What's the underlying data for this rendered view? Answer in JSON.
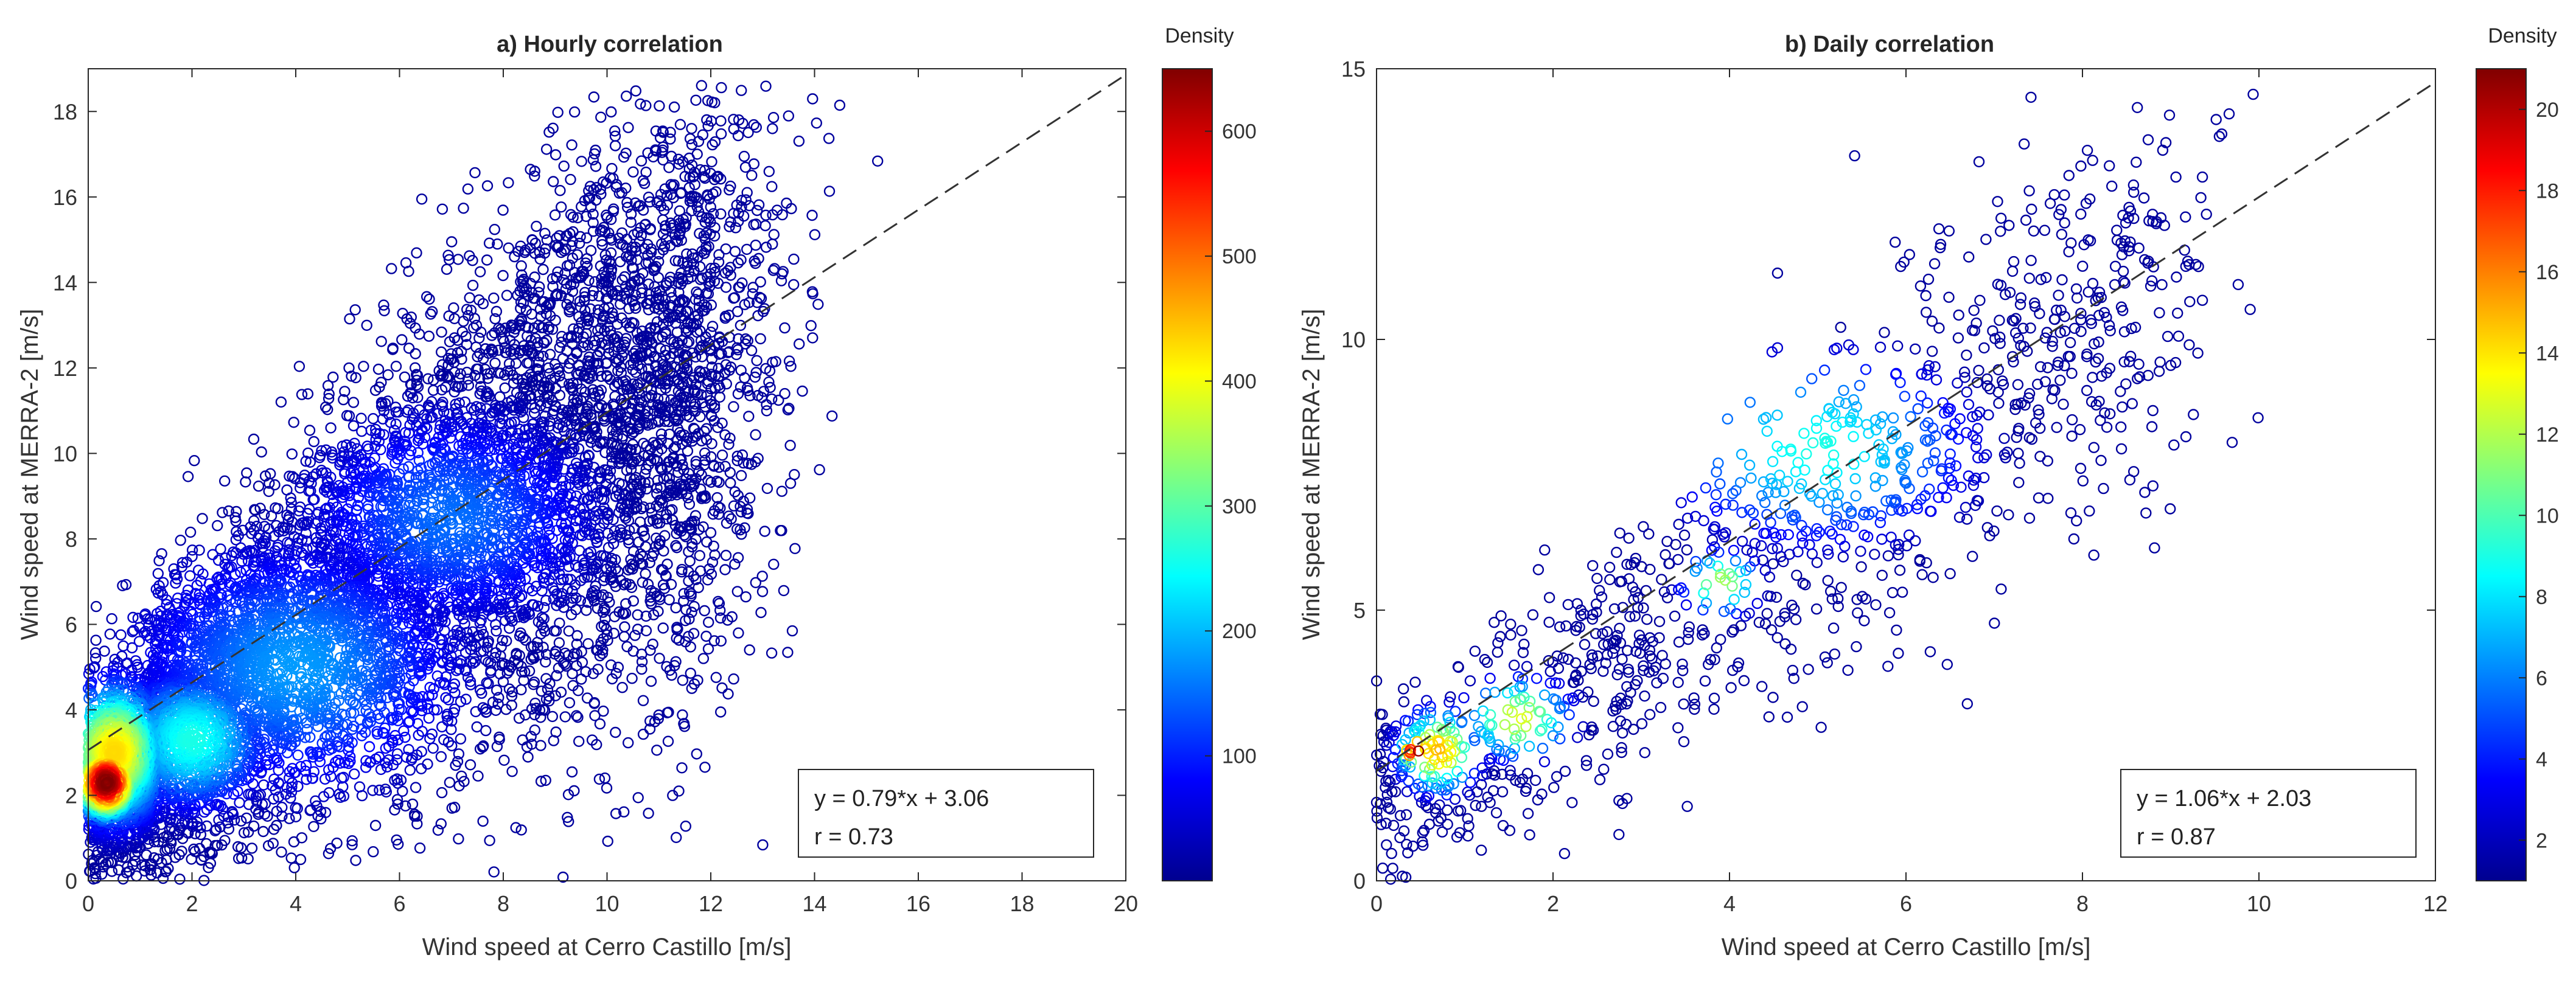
{
  "chart_data": [
    {
      "type": "scatter",
      "title": "a) Hourly correlation",
      "xlabel": "Wind speed at Cerro Castillo [m/s]",
      "ylabel": "Wind speed at MERRA-2 [m/s]",
      "xlim": [
        0,
        20
      ],
      "ylim": [
        0,
        19
      ],
      "xticks": [
        "0",
        "2",
        "4",
        "6",
        "8",
        "10",
        "12",
        "14",
        "16",
        "18",
        "20"
      ],
      "yticks": [
        "0",
        "2",
        "4",
        "6",
        "8",
        "10",
        "12",
        "14",
        "16",
        "18"
      ],
      "colorbar": {
        "title": "Density",
        "range": [
          0,
          650
        ],
        "ticks": [
          "100",
          "200",
          "300",
          "400",
          "500",
          "600"
        ]
      },
      "fit": {
        "slope": 0.79,
        "intercept": 3.06
      },
      "annotation": {
        "equation": "y = 0.79*x + 3.06",
        "r": "r = 0.73"
      },
      "density_hotspots": [
        {
          "x": 0.35,
          "y": 2.3,
          "density": 650,
          "spread_x": 0.35,
          "spread_y": 0.5
        },
        {
          "x": 0.5,
          "y": 3.0,
          "density": 430,
          "spread_x": 0.6,
          "spread_y": 1.0
        },
        {
          "x": 2.0,
          "y": 3.3,
          "density": 260,
          "spread_x": 0.9,
          "spread_y": 1.0
        },
        {
          "x": 4.0,
          "y": 5.0,
          "density": 180,
          "spread_x": 2.0,
          "spread_y": 1.8
        },
        {
          "x": 7.0,
          "y": 8.5,
          "density": 150,
          "spread_x": 1.8,
          "spread_y": 1.6
        }
      ],
      "n_points": 9000
    },
    {
      "type": "scatter",
      "title": "b) Daily correlation",
      "xlabel": "Wind speed at Cerro Castillo [m/s]",
      "ylabel": "Wind speed at MERRA-2 [m/s]",
      "xlim": [
        0,
        12
      ],
      "ylim": [
        0,
        15
      ],
      "xticks": [
        "0",
        "2",
        "4",
        "6",
        "8",
        "10",
        "12"
      ],
      "yticks": [
        "0",
        "5",
        "10",
        "15"
      ],
      "colorbar": {
        "title": "Density",
        "range": [
          1,
          21
        ],
        "ticks": [
          "2",
          "4",
          "6",
          "8",
          "10",
          "12",
          "14",
          "16",
          "18",
          "20"
        ]
      },
      "fit": {
        "slope": 1.06,
        "intercept": 2.03
      },
      "annotation": {
        "equation": "y = 1.06*x + 2.03",
        "r": "r = 0.87"
      },
      "density_hotspots": [
        {
          "x": 0.45,
          "y": 2.4,
          "density": 21,
          "spread_x": 0.12,
          "spread_y": 0.2
        },
        {
          "x": 0.7,
          "y": 2.4,
          "density": 15,
          "spread_x": 0.3,
          "spread_y": 0.5
        },
        {
          "x": 1.6,
          "y": 3.0,
          "density": 13,
          "spread_x": 0.4,
          "spread_y": 0.5
        },
        {
          "x": 3.9,
          "y": 5.5,
          "density": 12,
          "spread_x": 0.3,
          "spread_y": 0.4
        },
        {
          "x": 5.0,
          "y": 8.0,
          "density": 9,
          "spread_x": 1.2,
          "spread_y": 1.2
        }
      ],
      "n_points": 1300
    }
  ]
}
